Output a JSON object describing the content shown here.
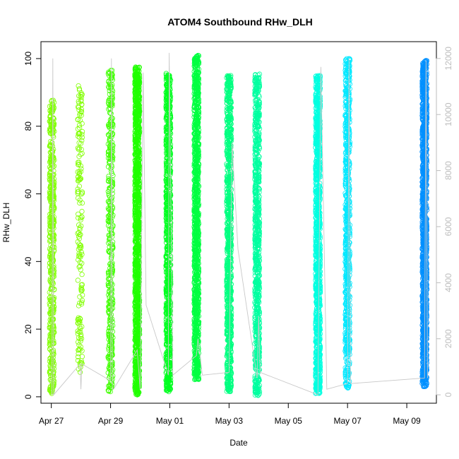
{
  "chart_data": {
    "type": "scatter",
    "title": "ATOM4 Southbound RHw_DLH",
    "xlabel": "Date",
    "ylabel": "RHw_DLH",
    "x_ticks": [
      "Apr 27",
      "Apr 29",
      "May 01",
      "May 03",
      "May 05",
      "May 07",
      "May 09"
    ],
    "x_tick_days": [
      0,
      2,
      4,
      6,
      8,
      10,
      12
    ],
    "xlim_days": [
      -0.35,
      13.0
    ],
    "y_ticks": [
      "0",
      "20",
      "40",
      "60",
      "80",
      "100"
    ],
    "ylim": [
      -1.9,
      105
    ],
    "y2_ticks": [
      "0",
      "2000",
      "4000",
      "6000",
      "8000",
      "10000",
      "12000"
    ],
    "y2lim": [
      -300,
      12600
    ],
    "series": [
      {
        "day": 0.02,
        "color": "#80ff00",
        "ymin": 0.8,
        "ymax": 88,
        "n": 520
      },
      {
        "day": 0.97,
        "color": "#80ff00",
        "ymin": 7,
        "ymax": 92,
        "n": 180
      },
      {
        "day": 2.0,
        "color": "#40ff00",
        "ymin": 1.5,
        "ymax": 97,
        "n": 420
      },
      {
        "day": 2.9,
        "color": "#20ff00",
        "ymin": 0.5,
        "ymax": 97.5,
        "n": 1300
      },
      {
        "day": 3.95,
        "color": "#00ff20",
        "ymin": 1.5,
        "ymax": 96,
        "n": 900
      },
      {
        "day": 4.9,
        "color": "#00ff40",
        "ymin": 5,
        "ymax": 101,
        "n": 1100
      },
      {
        "day": 6.0,
        "color": "#00ff80",
        "ymin": 1.5,
        "ymax": 95,
        "n": 900
      },
      {
        "day": 6.95,
        "color": "#00ffa0",
        "ymin": 0.4,
        "ymax": 95.5,
        "n": 800
      },
      {
        "day": 9.0,
        "color": "#00ffe0",
        "ymin": 1.0,
        "ymax": 95,
        "n": 1100
      },
      {
        "day": 10.0,
        "color": "#00e8ff",
        "ymin": 2.0,
        "ymax": 100,
        "n": 700
      },
      {
        "day": 12.6,
        "color": "#0090ff",
        "ymin": 3.0,
        "ymax": 99.5,
        "n": 1300
      }
    ],
    "counter_line": [
      [
        0.02,
        0
      ],
      [
        0.05,
        12000
      ],
      [
        0.08,
        0
      ],
      [
        0.97,
        1100
      ],
      [
        1.0,
        200
      ],
      [
        1.03,
        1100
      ],
      [
        2.0,
        500
      ],
      [
        2.03,
        12000
      ],
      [
        2.06,
        200
      ],
      [
        2.1,
        200
      ],
      [
        2.9,
        1600
      ],
      [
        3.0,
        200
      ],
      [
        3.1,
        11500
      ],
      [
        3.2,
        3200
      ],
      [
        3.95,
        700
      ],
      [
        3.98,
        12200
      ],
      [
        4.1,
        700
      ],
      [
        4.9,
        1400
      ],
      [
        4.95,
        2000
      ],
      [
        5.1,
        700
      ],
      [
        6.0,
        800
      ],
      [
        6.1,
        9000
      ],
      [
        6.3,
        5200
      ],
      [
        6.95,
        600
      ],
      [
        7.0,
        2800
      ],
      [
        7.05,
        800
      ],
      [
        9.0,
        0
      ],
      [
        9.1,
        11700
      ],
      [
        9.3,
        200
      ],
      [
        10.0,
        400
      ],
      [
        10.05,
        12000
      ],
      [
        10.1,
        400
      ],
      [
        12.6,
        600
      ],
      [
        12.65,
        11900
      ],
      [
        12.7,
        600
      ]
    ]
  }
}
